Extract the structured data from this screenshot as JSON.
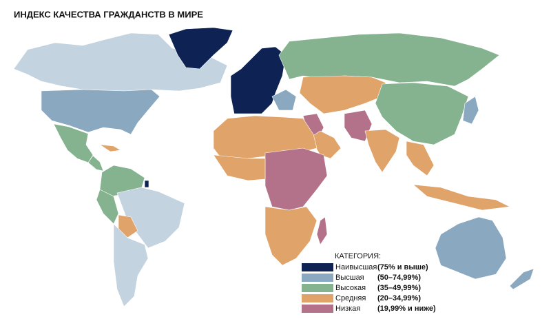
{
  "title": "ИНДЕКС КАЧЕСТВА ГРАЖДАНСТВ В МИРЕ",
  "legend": {
    "title": "КАТЕГОРИЯ:",
    "items": [
      {
        "name": "Наивысшая",
        "range": "(75% и выше)",
        "color": "#0e2354"
      },
      {
        "name": "Высшая",
        "range": "(50–74,99%)",
        "color": "#8aa9c0"
      },
      {
        "name": "Высокая",
        "range": "(35–49,99%)",
        "color": "#86b38f"
      },
      {
        "name": "Средняя",
        "range": "(20–34,99%)",
        "color": "#e0a46a"
      },
      {
        "name": "Низкая",
        "range": "(19,99% и ниже)",
        "color": "#b3718a"
      }
    ]
  }
}
